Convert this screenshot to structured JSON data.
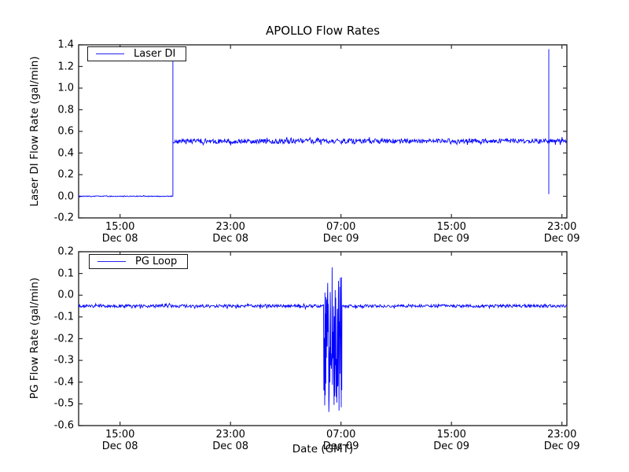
{
  "figure": {
    "background_color": "#ffffff",
    "line_color": "#0000ff",
    "axis_color": "#2b2b2b"
  },
  "chart_data": [
    {
      "type": "line",
      "title": "APOLLO Flow Rates",
      "ylabel": "Laser DI Flow Rate (gal/min)",
      "xlabel": "",
      "ylim": [
        -0.2,
        1.4
      ],
      "ytick_labels": [
        "1.4",
        "1.2",
        "1.0",
        "0.8",
        "0.6",
        "0.4",
        "0.2",
        "0.0",
        "-0.2"
      ],
      "x_range_hours": [
        0,
        35.36
      ],
      "x_reference": "hours after Dec 08 12:00 GMT",
      "xtick_hours": [
        3,
        11,
        19,
        27,
        35
      ],
      "xtick_labels": [
        {
          "time": "15:00",
          "date": "Dec 08"
        },
        {
          "time": "23:00",
          "date": "Dec 08"
        },
        {
          "time": "07:00",
          "date": "Dec 09"
        },
        {
          "time": "15:00",
          "date": "Dec 09"
        },
        {
          "time": "23:00",
          "date": "Dec 09"
        }
      ],
      "legend": {
        "label": "Laser DI",
        "location": "upper left"
      },
      "grid": false,
      "series": [
        {
          "name": "Laser DI",
          "color": "#0000ff",
          "segments": [
            {
              "type": "flat",
              "from_h": 0,
              "to_h": 6.83,
              "value": 0.0,
              "noise": 0.004,
              "note": "flow 0.0 gal/min until ~18:50 Dec 08"
            },
            {
              "type": "spike",
              "at_h": 6.83,
              "top": 1.38,
              "bottom": 0.0,
              "note": "startup transient to ~1.38"
            },
            {
              "type": "flat",
              "from_h": 6.83,
              "to_h": 35.36,
              "value": 0.51,
              "noise": 0.022,
              "note": "steady ~0.51 gal/min with noise"
            },
            {
              "type": "spike",
              "at_h": 34.05,
              "top": 1.36,
              "bottom": 0.02,
              "note": "brief transient ~22:00 Dec 09"
            }
          ]
        }
      ]
    },
    {
      "type": "line",
      "title": "",
      "ylabel": "PG Flow Rate (gal/min)",
      "xlabel": "Date (GMT)",
      "ylim": [
        -0.6,
        0.2
      ],
      "ytick_labels": [
        "0.2",
        "0.1",
        "0.0",
        "-0.1",
        "-0.2",
        "-0.3",
        "-0.4",
        "-0.5",
        "-0.6"
      ],
      "x_range_hours": [
        0,
        35.36
      ],
      "x_reference": "hours after Dec 08 12:00 GMT",
      "xtick_hours": [
        3,
        11,
        19,
        27,
        35
      ],
      "xtick_labels": [
        {
          "time": "15:00",
          "date": "Dec 08"
        },
        {
          "time": "23:00",
          "date": "Dec 08"
        },
        {
          "time": "07:00",
          "date": "Dec 09"
        },
        {
          "time": "15:00",
          "date": "Dec 09"
        },
        {
          "time": "23:00",
          "date": "Dec 09"
        }
      ],
      "legend": {
        "label": "PG Loop",
        "location": "upper left"
      },
      "grid": false,
      "series": [
        {
          "name": "PG Loop",
          "color": "#0000ff",
          "segments": [
            {
              "type": "flat",
              "from_h": 0,
              "to_h": 17.76,
              "value": -0.05,
              "noise": 0.007,
              "note": "steady ~-0.05 gal/min"
            },
            {
              "type": "burst",
              "from_h": 17.76,
              "to_h": 19.07,
              "core_min": -0.45,
              "core_max": 0.04,
              "extreme_min": -0.55,
              "extreme_max": 0.13,
              "note": "oscillation ~05:50-07:05 Dec 09, peaks +0.13 / -0.55"
            },
            {
              "type": "flat",
              "from_h": 19.07,
              "to_h": 35.36,
              "value": -0.05,
              "noise": 0.007,
              "note": "returns to ~-0.05 gal/min"
            }
          ]
        }
      ]
    }
  ]
}
